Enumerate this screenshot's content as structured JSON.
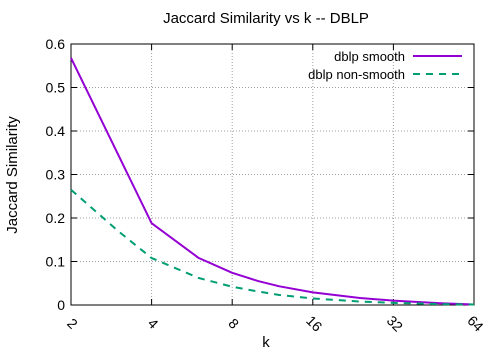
{
  "chart_data": {
    "type": "line",
    "title": "Jaccard Similarity vs k -- DBLP",
    "xlabel": "k",
    "ylabel": "Jaccard Similarity",
    "xscale": "log2",
    "xlim": [
      2,
      64
    ],
    "ylim": [
      0,
      0.6
    ],
    "xticks": [
      2,
      4,
      8,
      16,
      32,
      64
    ],
    "xtick_labels": [
      "2",
      "4",
      "8",
      "16",
      "32",
      "64"
    ],
    "yticks": [
      0,
      0.1,
      0.2,
      0.3,
      0.4,
      0.5,
      0.6
    ],
    "ytick_labels": [
      "0",
      "0.1",
      "0.2",
      "0.3",
      "0.4",
      "0.5",
      "0.6"
    ],
    "grid": true,
    "legend_position": "top-right",
    "series": [
      {
        "name": "dblp smooth",
        "color": "#9400d3",
        "style": "solid",
        "x": [
          2,
          4,
          6,
          8,
          10,
          12,
          16,
          24,
          32,
          48,
          64
        ],
        "y": [
          0.568,
          0.188,
          0.108,
          0.074,
          0.055,
          0.043,
          0.029,
          0.016,
          0.01,
          0.004,
          0.001
        ]
      },
      {
        "name": "dblp non-smooth",
        "color": "#009e73",
        "style": "dashed",
        "x": [
          2,
          3,
          4,
          6,
          8,
          10,
          12,
          16,
          24,
          32,
          48,
          64
        ],
        "y": [
          0.265,
          0.17,
          0.108,
          0.062,
          0.042,
          0.031,
          0.023,
          0.015,
          0.008,
          0.005,
          0.002,
          0.001
        ]
      }
    ]
  }
}
